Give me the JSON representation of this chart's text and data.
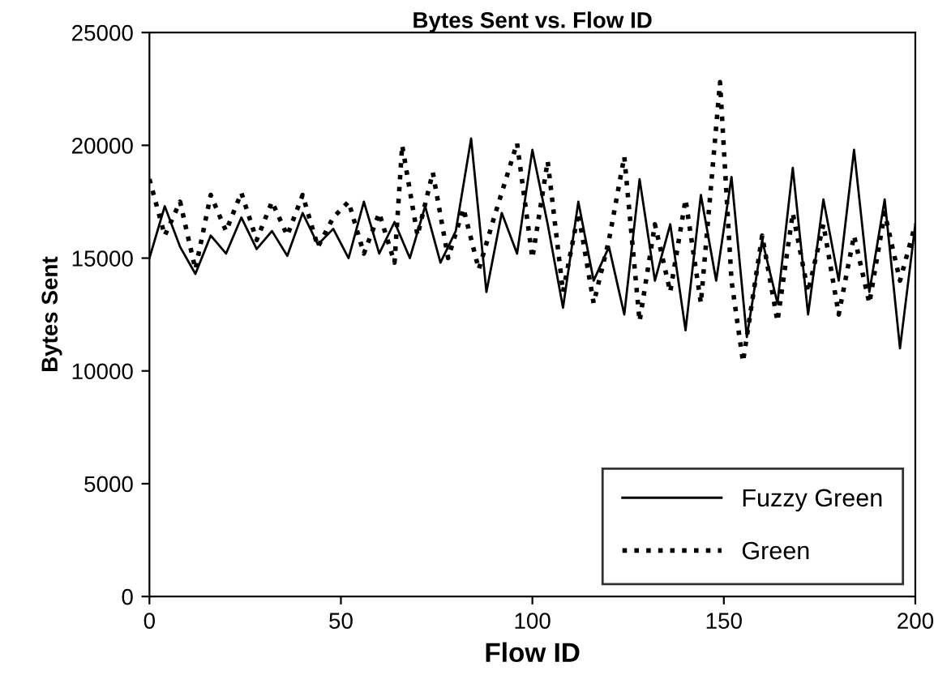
{
  "chart_data": {
    "type": "line",
    "title": "Bytes Sent vs. Flow ID",
    "xlabel": "Flow ID",
    "ylabel": "Bytes Sent",
    "xlim": [
      0,
      200
    ],
    "xticks": [
      0,
      50,
      100,
      150,
      200
    ],
    "ylim": [
      0,
      25000
    ],
    "yticks": [
      0,
      5000,
      10000,
      15000,
      20000,
      25000
    ],
    "grid": false,
    "legend": "bottom right",
    "marker": "none",
    "series": [
      {
        "name": "Fuzzy Green",
        "color": "#000000",
        "line_style": "solid",
        "x": [
          0,
          4,
          8,
          12,
          16,
          20,
          24,
          28,
          32,
          36,
          40,
          44,
          48,
          52,
          56,
          60,
          64,
          68,
          72,
          76,
          80,
          84,
          88,
          92,
          96,
          100,
          104,
          108,
          112,
          116,
          120,
          124,
          128,
          132,
          136,
          140,
          144,
          148,
          152,
          156,
          160,
          164,
          168,
          172,
          176,
          180,
          184,
          188,
          192,
          196,
          200
        ],
        "values": [
          15000,
          17300,
          15500,
          14300,
          16000,
          15200,
          16800,
          15400,
          16200,
          15100,
          17000,
          15600,
          16300,
          15000,
          17500,
          15200,
          16600,
          15000,
          17300,
          14800,
          16200,
          20300,
          13500,
          17000,
          15200,
          19800,
          16500,
          12800,
          17500,
          14000,
          15500,
          12500,
          18500,
          14000,
          16500,
          11800,
          17800,
          14000,
          18600,
          11500,
          15800,
          13000,
          19000,
          12500,
          17600,
          14000,
          19800,
          13500,
          17600,
          11000,
          16500
        ]
      },
      {
        "name": "Green",
        "color": "#000000",
        "line_style": "dotted",
        "x": [
          0,
          4,
          8,
          12,
          16,
          20,
          24,
          28,
          32,
          36,
          40,
          44,
          48,
          52,
          56,
          60,
          64,
          66,
          70,
          74,
          78,
          82,
          86,
          90,
          96,
          100,
          104,
          108,
          112,
          116,
          120,
          124,
          128,
          132,
          136,
          140,
          144,
          149,
          152,
          155,
          160,
          164,
          168,
          172,
          176,
          180,
          184,
          188,
          192,
          196,
          200
        ],
        "values": [
          18500,
          16000,
          17500,
          14500,
          17800,
          16200,
          17900,
          15800,
          17500,
          16000,
          17800,
          15500,
          16800,
          17500,
          15200,
          17000,
          14800,
          20000,
          16000,
          18800,
          15000,
          17200,
          14500,
          16800,
          20100,
          15000,
          19300,
          13500,
          17000,
          13000,
          15800,
          19500,
          12200,
          16500,
          13500,
          17600,
          13000,
          22800,
          14000,
          10400,
          16000,
          12200,
          17000,
          13500,
          16500,
          12500,
          16000,
          13000,
          17000,
          14000,
          16500
        ]
      }
    ]
  }
}
